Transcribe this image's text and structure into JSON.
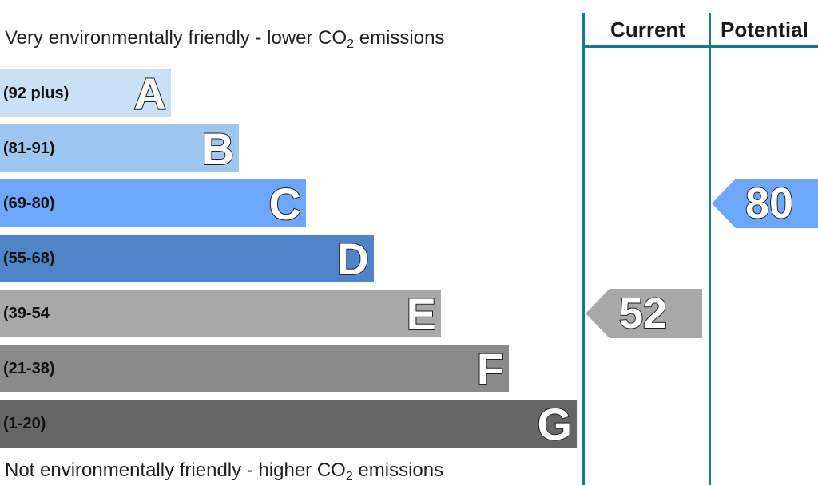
{
  "chart_data": {
    "type": "bar",
    "caption_top": {
      "text": "Very environmentally friendly - lower CO",
      "sub": "2",
      "tail": " emissions"
    },
    "caption_bottom": {
      "text": "Not environmentally friendly - higher CO",
      "sub": "2",
      "tail": " emissions"
    },
    "bands": [
      {
        "letter": "A",
        "range": "(92 plus)",
        "color": "#c9e0f5"
      },
      {
        "letter": "B",
        "range": "(81-91)",
        "color": "#9ec7ef"
      },
      {
        "letter": "C",
        "range": "(69-80)",
        "color": "#6ea6fb"
      },
      {
        "letter": "D",
        "range": "(55-68)",
        "color": "#4f85c8"
      },
      {
        "letter": "E",
        "range": "(39-54",
        "color": "#a8a8a8"
      },
      {
        "letter": "F",
        "range": "(21-38)",
        "color": "#8a8a8a"
      },
      {
        "letter": "G",
        "range": "(1-20)",
        "color": "#666666"
      }
    ],
    "columns": {
      "current": "Current",
      "potential": "Potential"
    },
    "current": {
      "value": "52",
      "band": "E",
      "color": "#a8a8a8"
    },
    "potential": {
      "value": "80",
      "band": "C",
      "color": "#6ea6fb"
    },
    "rule_color": "#157a8a"
  }
}
